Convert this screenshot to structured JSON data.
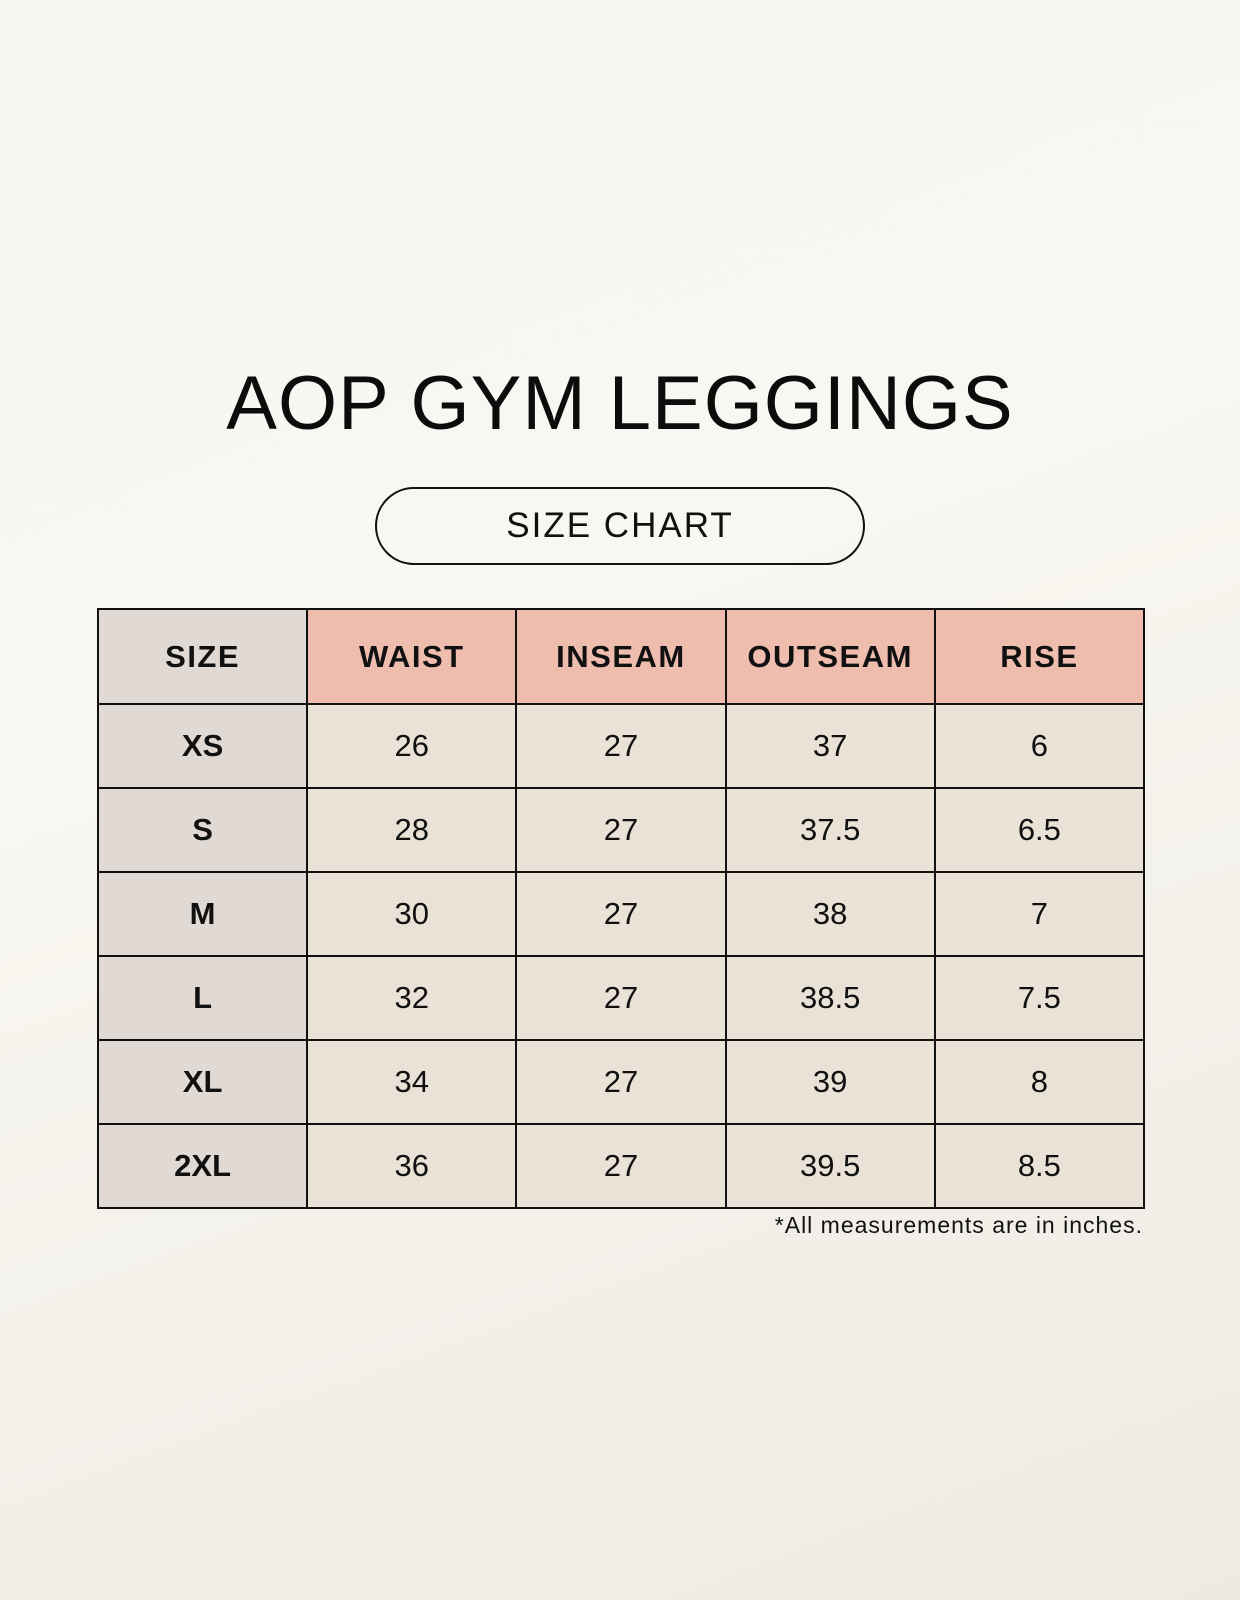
{
  "title": "AOP GYM LEGGINGS",
  "subtitle": "SIZE CHART",
  "table": {
    "headers": [
      "SIZE",
      "WAIST",
      "INSEAM",
      "OUTSEAM",
      "RISE"
    ],
    "rows": [
      [
        "XS",
        "26",
        "27",
        "37",
        "6"
      ],
      [
        "S",
        "28",
        "27",
        "37.5",
        "6.5"
      ],
      [
        "M",
        "30",
        "27",
        "38",
        "7"
      ],
      [
        "L",
        "32",
        "27",
        "38.5",
        "7.5"
      ],
      [
        "XL",
        "34",
        "27",
        "39",
        "8"
      ],
      [
        "2XL",
        "36",
        "27",
        "39.5",
        "8.5"
      ]
    ]
  },
  "footnote": "*All measurements are in inches.",
  "colors": {
    "header_accent": "#efbdae",
    "size_column": "#e0d9d4",
    "cell": "#eae1d7"
  }
}
